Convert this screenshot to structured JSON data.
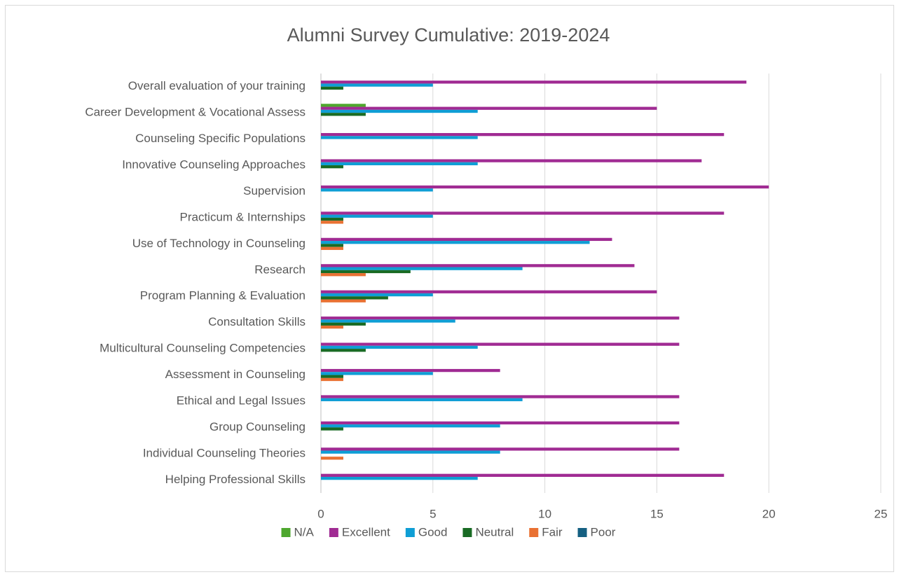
{
  "chart_data": {
    "type": "hbar",
    "title": "Alumni Survey Cumulative: 2019-2024",
    "categories": [
      "Overall evaluation of your training",
      "Career Development & Vocational Assess",
      "Counseling Specific Populations",
      "Innovative Counseling Approaches",
      "Supervision",
      "Practicum & Internships",
      "Use of Technology in Counseling",
      "Research",
      "Program Planning & Evaluation",
      "Consultation Skills",
      "Multicultural Counseling Competencies",
      "Assessment in Counseling",
      "Ethical and Legal Issues",
      "Group Counseling",
      "Individual Counseling Theories",
      "Helping Professional Skills"
    ],
    "series": [
      {
        "name": "N/A",
        "color": "#4ea72e",
        "values": [
          0,
          2,
          0,
          0,
          0,
          0,
          0,
          0,
          0,
          0,
          0,
          0,
          0,
          0,
          0,
          0
        ]
      },
      {
        "name": "Excellent",
        "color": "#a02b93",
        "values": [
          19,
          15,
          18,
          17,
          20,
          18,
          13,
          14,
          15,
          16,
          16,
          8,
          16,
          16,
          16,
          18
        ]
      },
      {
        "name": "Good",
        "color": "#0f9ed5",
        "values": [
          5,
          7,
          7,
          7,
          5,
          5,
          12,
          9,
          5,
          6,
          7,
          5,
          9,
          8,
          8,
          7
        ]
      },
      {
        "name": "Neutral",
        "color": "#196b24",
        "values": [
          1,
          2,
          0,
          1,
          0,
          1,
          1,
          4,
          3,
          2,
          2,
          1,
          0,
          1,
          0,
          0
        ]
      },
      {
        "name": "Fair",
        "color": "#e97132",
        "values": [
          0,
          0,
          0,
          0,
          0,
          1,
          1,
          2,
          2,
          1,
          0,
          1,
          0,
          0,
          1,
          0
        ]
      },
      {
        "name": "Poor",
        "color": "#156082",
        "values": [
          0,
          0,
          0,
          0,
          0,
          0,
          0,
          0,
          0,
          0,
          0,
          0,
          0,
          0,
          0,
          0
        ]
      }
    ],
    "xlim": [
      0,
      25
    ],
    "xticks": [
      0,
      5,
      10,
      15,
      20,
      25
    ],
    "grid": true,
    "legend": "bottom"
  }
}
